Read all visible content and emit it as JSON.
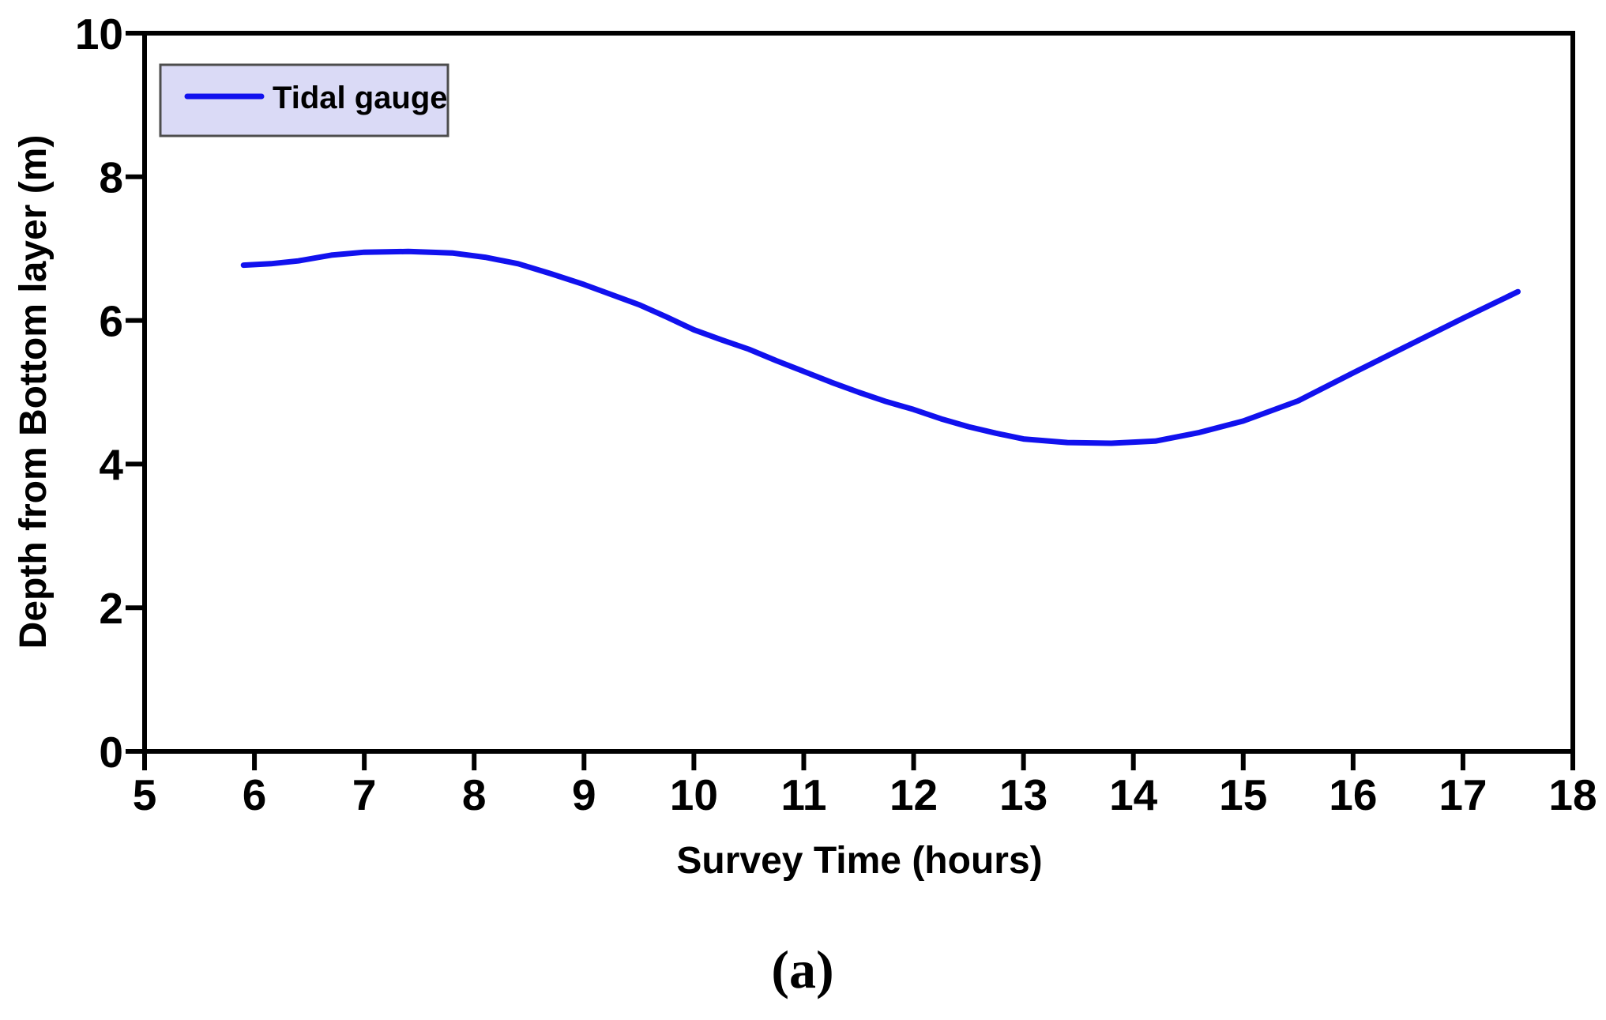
{
  "caption": "(a)",
  "chart_data": {
    "type": "line",
    "title": "",
    "xlabel": "Survey Time (hours)",
    "ylabel": "Depth from Bottom layer (m)",
    "xlim": [
      5,
      18
    ],
    "ylim": [
      0,
      10
    ],
    "xticks": [
      5,
      6,
      7,
      8,
      9,
      10,
      11,
      12,
      13,
      14,
      15,
      16,
      17,
      18
    ],
    "yticks": [
      0,
      2,
      4,
      6,
      8,
      10
    ],
    "grid": false,
    "axis_color": "#000000",
    "legend": {
      "position": "top-left",
      "bg": "#dadaf6",
      "border": "#4d4d4d"
    },
    "series": [
      {
        "name": "Tidal gauge",
        "color": "#1111ee",
        "points": [
          [
            5.9,
            6.77
          ],
          [
            6.15,
            6.79
          ],
          [
            6.4,
            6.83
          ],
          [
            6.7,
            6.91
          ],
          [
            7.0,
            6.95
          ],
          [
            7.4,
            6.96
          ],
          [
            7.8,
            6.94
          ],
          [
            8.1,
            6.88
          ],
          [
            8.4,
            6.79
          ],
          [
            8.7,
            6.65
          ],
          [
            9.0,
            6.5
          ],
          [
            9.25,
            6.36
          ],
          [
            9.5,
            6.22
          ],
          [
            9.75,
            6.05
          ],
          [
            10.0,
            5.87
          ],
          [
            10.25,
            5.73
          ],
          [
            10.5,
            5.6
          ],
          [
            10.75,
            5.44
          ],
          [
            11.0,
            5.29
          ],
          [
            11.25,
            5.14
          ],
          [
            11.5,
            5.0
          ],
          [
            11.75,
            4.87
          ],
          [
            12.0,
            4.76
          ],
          [
            12.25,
            4.63
          ],
          [
            12.5,
            4.52
          ],
          [
            12.75,
            4.43
          ],
          [
            13.0,
            4.35
          ],
          [
            13.4,
            4.3
          ],
          [
            13.8,
            4.29
          ],
          [
            14.2,
            4.32
          ],
          [
            14.6,
            4.44
          ],
          [
            15.0,
            4.6
          ],
          [
            15.5,
            4.88
          ],
          [
            16.0,
            5.27
          ],
          [
            16.5,
            5.65
          ],
          [
            17.0,
            6.03
          ],
          [
            17.5,
            6.4
          ]
        ]
      }
    ]
  }
}
